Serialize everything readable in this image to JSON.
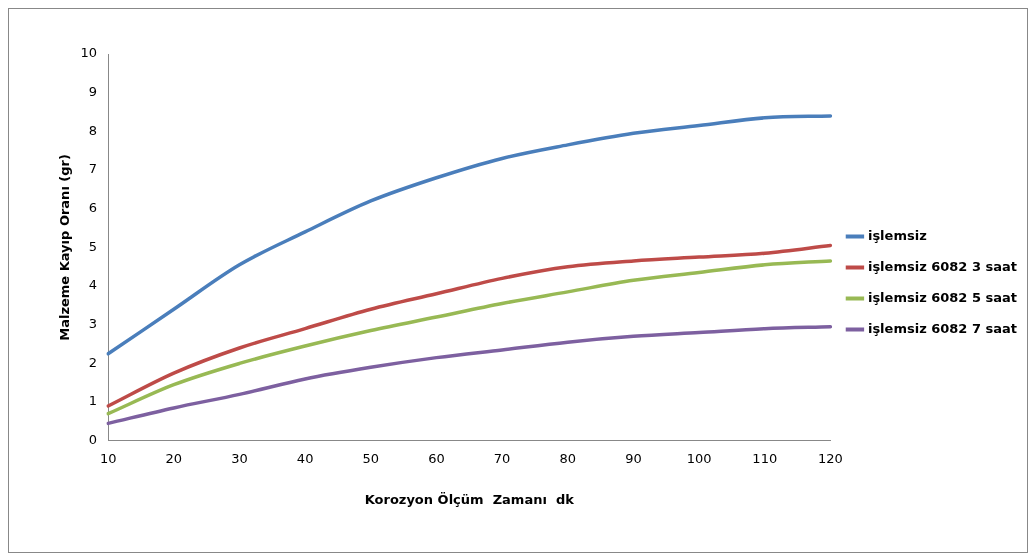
{
  "chart_data": {
    "type": "line",
    "xlabel": "Korozyon Ölçüm  Zamanı  dk",
    "ylabel": "Malzeme Kayıp Oranı (gr)",
    "categories": [
      "10",
      "20",
      "30",
      "40",
      "50",
      "60",
      "70",
      "80",
      "90",
      "100",
      "110",
      "120"
    ],
    "ylim": [
      0,
      10
    ],
    "yticks": [
      0,
      1,
      2,
      3,
      4,
      5,
      6,
      7,
      8,
      9,
      10
    ],
    "grid": false,
    "legend": "right",
    "marker": "none",
    "line_style": "solid",
    "series": [
      {
        "name": "işlemsiz",
        "color": "#4a7ebb",
        "values": [
          2.25,
          3.4,
          4.55,
          5.4,
          6.2,
          6.8,
          7.3,
          7.65,
          7.95,
          8.15,
          8.35,
          8.4
        ]
      },
      {
        "name": "işlemsiz 6082 3 saat",
        "color": "#be4b48",
        "values": [
          0.9,
          1.75,
          2.4,
          2.9,
          3.4,
          3.8,
          4.2,
          4.5,
          4.65,
          4.75,
          4.85,
          5.05
        ]
      },
      {
        "name": "işlemsiz 6082 5 saat",
        "color": "#98b954",
        "values": [
          0.7,
          1.45,
          2.0,
          2.45,
          2.85,
          3.2,
          3.55,
          3.85,
          4.15,
          4.35,
          4.55,
          4.65
        ]
      },
      {
        "name": "işlemsiz 6082 7 saat",
        "color": "#7d60a0",
        "values": [
          0.45,
          0.85,
          1.2,
          1.6,
          1.9,
          2.15,
          2.35,
          2.55,
          2.7,
          2.8,
          2.9,
          2.95
        ]
      }
    ]
  }
}
